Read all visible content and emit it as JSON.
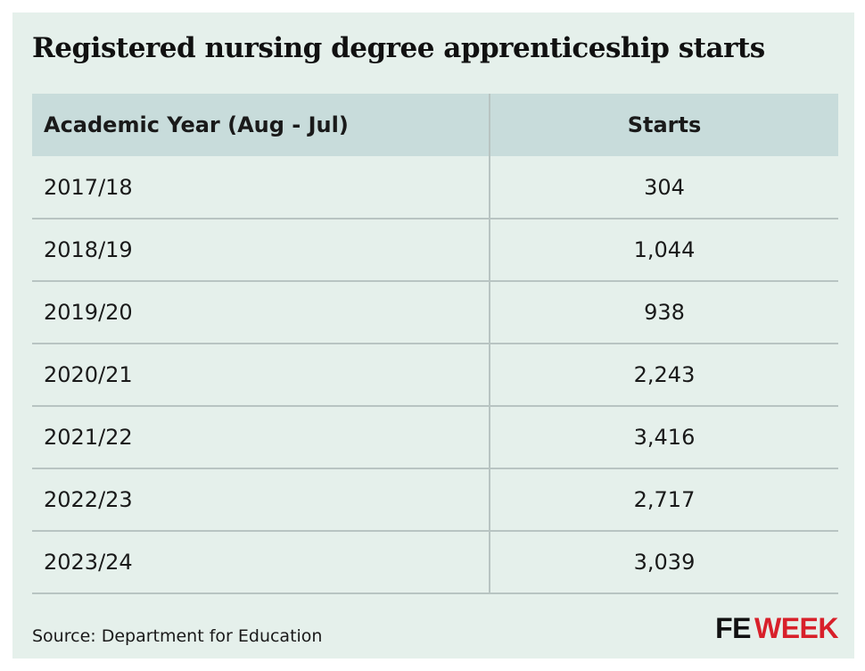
{
  "title": "Registered nursing degree apprenticeship starts",
  "table": {
    "headers": [
      "Academic Year (Aug - Jul)",
      "Starts"
    ],
    "rows": [
      [
        "2017/18",
        "304"
      ],
      [
        "2018/19",
        "1,044"
      ],
      [
        "2019/20",
        "938"
      ],
      [
        "2020/21",
        "2,243"
      ],
      [
        "2021/22",
        "3,416"
      ],
      [
        "2022/23",
        "2,717"
      ],
      [
        "2023/24",
        "3,039"
      ]
    ]
  },
  "source": "Source: Department for Education",
  "logo": {
    "part1": "FE",
    "part2": "WEEK"
  },
  "colors": {
    "background": "#e5f0eb",
    "header_fill": "#c8dcdb",
    "rule": "#b8c4c2",
    "logo_red": "#d8202a"
  },
  "chart_data": {
    "type": "table",
    "title": "Registered nursing degree apprenticeship starts",
    "columns": [
      "Academic Year (Aug - Jul)",
      "Starts"
    ],
    "categories": [
      "2017/18",
      "2018/19",
      "2019/20",
      "2020/21",
      "2021/22",
      "2022/23",
      "2023/24"
    ],
    "values": [
      304,
      1044,
      938,
      2243,
      3416,
      2717,
      3039
    ]
  }
}
